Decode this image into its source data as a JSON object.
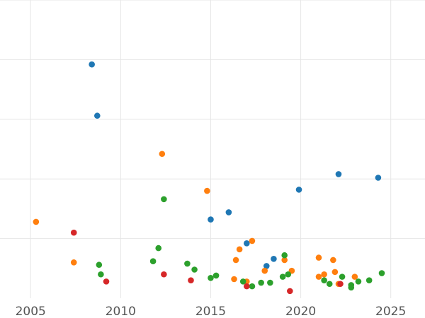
{
  "chart_data": {
    "type": "scatter",
    "title": "",
    "xlabel": "",
    "ylabel": "",
    "xlim": [
      2003.3,
      2026.9
    ],
    "ylim": [
      0,
      25
    ],
    "x_ticks": [
      2005,
      2010,
      2015,
      2020,
      2025
    ],
    "y_grid": [
      5,
      10,
      15,
      20,
      25
    ],
    "grid": true,
    "legend": "none",
    "series": [
      {
        "color": "#1f77b4",
        "points": [
          {
            "x": 2008.4,
            "y": 19.6
          },
          {
            "x": 2008.7,
            "y": 15.3
          },
          {
            "x": 2015.0,
            "y": 6.6
          },
          {
            "x": 2016.0,
            "y": 7.2
          },
          {
            "x": 2017.0,
            "y": 4.6
          },
          {
            "x": 2018.1,
            "y": 2.7
          },
          {
            "x": 2018.5,
            "y": 3.3
          },
          {
            "x": 2019.9,
            "y": 9.1
          },
          {
            "x": 2022.1,
            "y": 10.4
          },
          {
            "x": 2024.3,
            "y": 10.1
          }
        ]
      },
      {
        "color": "#ff7f0e",
        "points": [
          {
            "x": 2005.3,
            "y": 6.4
          },
          {
            "x": 2007.4,
            "y": 3.0
          },
          {
            "x": 2012.3,
            "y": 12.1
          },
          {
            "x": 2014.8,
            "y": 9.0
          },
          {
            "x": 2016.3,
            "y": 1.6
          },
          {
            "x": 2016.4,
            "y": 3.2
          },
          {
            "x": 2016.6,
            "y": 4.1
          },
          {
            "x": 2017.0,
            "y": 1.4
          },
          {
            "x": 2017.3,
            "y": 4.8
          },
          {
            "x": 2018.0,
            "y": 2.3
          },
          {
            "x": 2019.1,
            "y": 3.2
          },
          {
            "x": 2019.5,
            "y": 2.3
          },
          {
            "x": 2021.0,
            "y": 1.8
          },
          {
            "x": 2021.0,
            "y": 3.4
          },
          {
            "x": 2021.3,
            "y": 2.0
          },
          {
            "x": 2021.8,
            "y": 3.2
          },
          {
            "x": 2021.9,
            "y": 2.2
          },
          {
            "x": 2022.1,
            "y": 1.2
          },
          {
            "x": 2023.0,
            "y": 1.8
          }
        ]
      },
      {
        "color": "#2ca02c",
        "points": [
          {
            "x": 2008.8,
            "y": 2.8
          },
          {
            "x": 2008.9,
            "y": 2.0
          },
          {
            "x": 2011.8,
            "y": 3.1
          },
          {
            "x": 2012.1,
            "y": 4.2
          },
          {
            "x": 2012.4,
            "y": 8.3
          },
          {
            "x": 2013.7,
            "y": 2.9
          },
          {
            "x": 2014.1,
            "y": 2.4
          },
          {
            "x": 2015.0,
            "y": 1.7
          },
          {
            "x": 2015.3,
            "y": 1.9
          },
          {
            "x": 2016.8,
            "y": 1.4
          },
          {
            "x": 2017.3,
            "y": 1.0
          },
          {
            "x": 2017.8,
            "y": 1.3
          },
          {
            "x": 2018.3,
            "y": 1.3
          },
          {
            "x": 2019.0,
            "y": 1.8
          },
          {
            "x": 2019.1,
            "y": 3.6
          },
          {
            "x": 2019.3,
            "y": 2.0
          },
          {
            "x": 2021.3,
            "y": 1.5
          },
          {
            "x": 2021.6,
            "y": 1.2
          },
          {
            "x": 2022.3,
            "y": 1.8
          },
          {
            "x": 2022.8,
            "y": 1.1
          },
          {
            "x": 2022.8,
            "y": 0.9
          },
          {
            "x": 2023.2,
            "y": 1.4
          },
          {
            "x": 2023.8,
            "y": 1.5
          },
          {
            "x": 2024.5,
            "y": 2.1
          }
        ]
      },
      {
        "color": "#d62728",
        "points": [
          {
            "x": 2007.4,
            "y": 5.5
          },
          {
            "x": 2009.2,
            "y": 1.4
          },
          {
            "x": 2012.4,
            "y": 2.0
          },
          {
            "x": 2013.9,
            "y": 1.5
          },
          {
            "x": 2017.0,
            "y": 1.0
          },
          {
            "x": 2019.4,
            "y": 0.6
          },
          {
            "x": 2022.2,
            "y": 1.2
          }
        ]
      }
    ]
  }
}
